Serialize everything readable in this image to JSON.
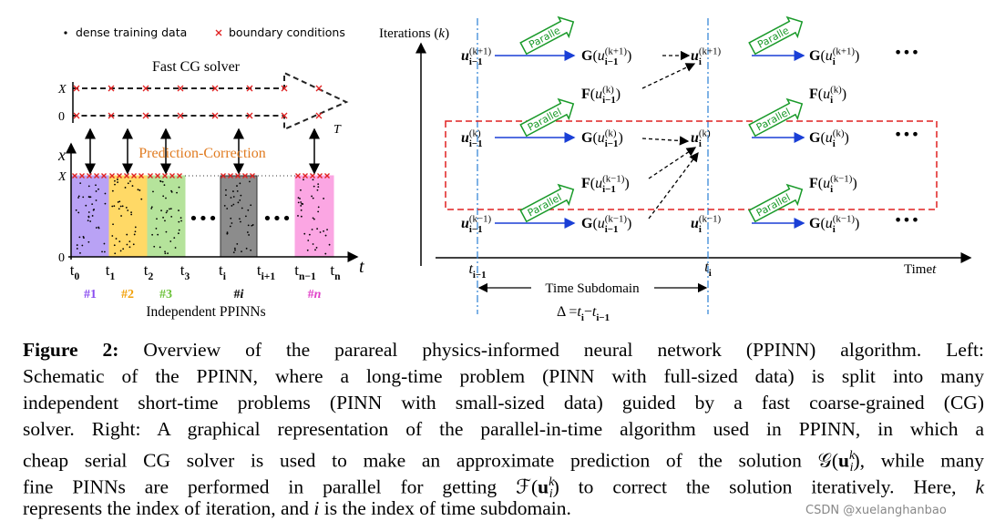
{
  "left": {
    "legend": [
      "dense training data",
      "boundary conditions"
    ],
    "solver_label": "Fast CG solver",
    "top_axis": {
      "X": "X",
      "zero": "0",
      "T": "T"
    },
    "x_axis": {
      "name": "x",
      "X": "X",
      "zero": "0"
    },
    "pc_label": "Prediction-Correction",
    "t_ticks": [
      [
        {
          "t": "t"
        },
        {
          "t": "0",
          "s": "sub"
        }
      ],
      [
        {
          "t": "t"
        },
        {
          "t": "1",
          "s": "sub"
        }
      ],
      [
        {
          "t": "t"
        },
        {
          "t": "2",
          "s": "sub"
        }
      ],
      [
        {
          "t": "t"
        },
        {
          "t": "3",
          "s": "sub"
        }
      ],
      [
        {
          "t": "t"
        },
        {
          "t": "i",
          "s": "sub"
        }
      ],
      [
        {
          "t": "t"
        },
        {
          "t": "i+1",
          "s": "sub"
        }
      ],
      [
        {
          "t": "t"
        },
        {
          "t": "n−1",
          "s": "sub"
        }
      ],
      [
        {
          "t": "t"
        },
        {
          "t": "n",
          "s": "sub"
        }
      ]
    ],
    "t_name": "t",
    "gaps": [
      "•••",
      "•••"
    ],
    "subdomains": [
      [
        {
          "t": "#1",
          "s": "b"
        }
      ],
      [
        {
          "t": "#2",
          "s": "b"
        }
      ],
      [
        {
          "t": "#3",
          "s": "b"
        }
      ],
      [
        {
          "t": "#",
          "s": "b"
        },
        {
          "t": "i",
          "s": "bi"
        }
      ],
      [
        {
          "t": "#",
          "s": "b"
        },
        {
          "t": "n",
          "s": "bi"
        }
      ]
    ],
    "caption": "Independent PPINNs"
  },
  "right": {
    "y_label": [
      {
        "t": "Iterations ("
      },
      {
        "t": "k",
        "s": "i"
      },
      {
        "t": ")"
      }
    ],
    "x_label": [
      {
        "t": "Time "
      },
      {
        "t": "t",
        "s": "i"
      }
    ],
    "t_prev": [
      {
        "t": "t",
        "s": "i"
      },
      {
        "t": "i−1",
        "s": "sub"
      }
    ],
    "t_cur": [
      {
        "t": "t",
        "s": "i"
      },
      {
        "t": "i",
        "s": "sub"
      }
    ],
    "subdomain": "Time Subdomain",
    "delta": [
      {
        "t": "Δ = "
      },
      {
        "t": "t",
        "s": "i"
      },
      {
        "t": "i",
        "s": "sub"
      },
      {
        "t": " − "
      },
      {
        "t": "t",
        "s": "i"
      },
      {
        "t": "i−1",
        "s": "sub"
      }
    ],
    "rows": [
      {
        "u_left": [
          {
            "t": "u",
            "s": "bi"
          },
          {
            "t": "(k+1)",
            "s": "sup"
          },
          {
            "t": "i−1",
            "s": "sub"
          }
        ],
        "par_left": "Paralle",
        "g_left": [
          {
            "t": "G",
            "s": "b"
          },
          {
            "t": "("
          },
          {
            "t": "u",
            "s": "i"
          },
          {
            "t": "(k+1)",
            "s": "sup"
          },
          {
            "t": "i−1",
            "s": "sub"
          },
          {
            "t": ")"
          }
        ],
        "u_right": [
          {
            "t": "u",
            "s": "bi"
          },
          {
            "t": "(k+1)",
            "s": "sup"
          },
          {
            "t": "i",
            "s": "sub"
          }
        ],
        "par_right": "Paralle",
        "g_right": [
          {
            "t": "G",
            "s": "b"
          },
          {
            "t": "("
          },
          {
            "t": "u",
            "s": "i"
          },
          {
            "t": "(k+1)",
            "s": "sup"
          },
          {
            "t": "i",
            "s": "sub"
          },
          {
            "t": ")"
          }
        ],
        "dots": "•••"
      },
      {
        "u_left": [
          {
            "t": "u",
            "s": "bi"
          },
          {
            "t": "(k)",
            "s": "sup"
          },
          {
            "t": "i−1",
            "s": "sub"
          }
        ],
        "par_left": "Parallel",
        "g_left": [
          {
            "t": "G",
            "s": "b"
          },
          {
            "t": "("
          },
          {
            "t": "u",
            "s": "i"
          },
          {
            "t": "(k)",
            "s": "sup"
          },
          {
            "t": "i−1",
            "s": "sub"
          },
          {
            "t": ")"
          }
        ],
        "u_right": [
          {
            "t": "u",
            "s": "bi"
          },
          {
            "t": "(k)",
            "s": "sup"
          },
          {
            "t": "i",
            "s": "sub"
          }
        ],
        "par_right": "Parallel",
        "g_right": [
          {
            "t": "G",
            "s": "b"
          },
          {
            "t": "("
          },
          {
            "t": "u",
            "s": "i"
          },
          {
            "t": "(k)",
            "s": "sup"
          },
          {
            "t": "i",
            "s": "sub"
          },
          {
            "t": ")"
          }
        ],
        "dots": "•••"
      },
      {
        "u_left": [
          {
            "t": "u",
            "s": "bi"
          },
          {
            "t": "(k−1)",
            "s": "sup"
          },
          {
            "t": "i−1",
            "s": "sub"
          }
        ],
        "par_left": "Parallel",
        "g_left": [
          {
            "t": "G",
            "s": "b"
          },
          {
            "t": "("
          },
          {
            "t": "u",
            "s": "i"
          },
          {
            "t": "(k−1)",
            "s": "sup"
          },
          {
            "t": "i−1",
            "s": "sub"
          },
          {
            "t": ")"
          }
        ],
        "u_right": [
          {
            "t": "u",
            "s": "bi"
          },
          {
            "t": "(k−1)",
            "s": "sup"
          },
          {
            "t": "i",
            "s": "sub"
          }
        ],
        "par_right": "Parallel",
        "g_right": [
          {
            "t": "G",
            "s": "b"
          },
          {
            "t": "("
          },
          {
            "t": "u",
            "s": "i"
          },
          {
            "t": "(k−1)",
            "s": "sup"
          },
          {
            "t": "i",
            "s": "sub"
          },
          {
            "t": ")"
          }
        ],
        "dots": "•••"
      }
    ],
    "f_rows": [
      {
        "left": [
          {
            "t": "F",
            "s": "b"
          },
          {
            "t": "("
          },
          {
            "t": "u",
            "s": "i"
          },
          {
            "t": "(k)",
            "s": "sup"
          },
          {
            "t": "i−1",
            "s": "sub"
          },
          {
            "t": ")"
          }
        ],
        "right": [
          {
            "t": "F",
            "s": "b"
          },
          {
            "t": "("
          },
          {
            "t": "u",
            "s": "i"
          },
          {
            "t": "(k)",
            "s": "sup"
          },
          {
            "t": "i",
            "s": "sub"
          },
          {
            "t": ")"
          }
        ]
      },
      {
        "left": [
          {
            "t": "F",
            "s": "b"
          },
          {
            "t": "("
          },
          {
            "t": "u",
            "s": "i"
          },
          {
            "t": "(k−1)",
            "s": "sup"
          },
          {
            "t": "i−1",
            "s": "sub"
          },
          {
            "t": ")"
          }
        ],
        "right": [
          {
            "t": "F",
            "s": "b"
          },
          {
            "t": "("
          },
          {
            "t": "u",
            "s": "i"
          },
          {
            "t": "(k−1)",
            "s": "sup"
          },
          {
            "t": "i",
            "s": "sub"
          },
          {
            "t": ")"
          }
        ]
      }
    ]
  },
  "caption": {
    "lines": [
      [
        {
          "t": "Figure 2:",
          "s": "b"
        },
        {
          "t": " Overview of the parareal physics-informed neural network (PPINN) algorithm. Left:"
        }
      ],
      [
        {
          "t": "Schematic of the PPINN, where a long-time problem (PINN with full-sized data) is split into many"
        }
      ],
      [
        {
          "t": "independent short-time problems (PINN with small-sized data) guided by a fast coarse-grained (CG)"
        }
      ],
      [
        {
          "t": "solver. Right: A graphical representation of the parallel-in-time algorithm used in PPINN, in which a"
        }
      ],
      [
        {
          "t": "cheap serial CG solver is used to make an approximate prediction of the solution 𝒢("
        },
        {
          "t": "u",
          "s": "b"
        },
        {
          "t": "k",
          "s": "sup"
        },
        {
          "t": "i",
          "s": "sub"
        },
        {
          "t": "), while many"
        }
      ],
      [
        {
          "t": "fine PINNs are performed in parallel for getting ℱ("
        },
        {
          "t": "u",
          "s": "b"
        },
        {
          "t": "k",
          "s": "sup"
        },
        {
          "t": "i",
          "s": "sub"
        },
        {
          "t": ") to correct the solution iteratively. Here, "
        },
        {
          "t": "k",
          "s": "i"
        }
      ],
      [
        {
          "t": "represents the index of iteration, and "
        },
        {
          "t": "i",
          "s": "i"
        },
        {
          "t": " is the index of time subdomain."
        }
      ]
    ]
  },
  "watermark": "CSDN @xuelanghanbao"
}
